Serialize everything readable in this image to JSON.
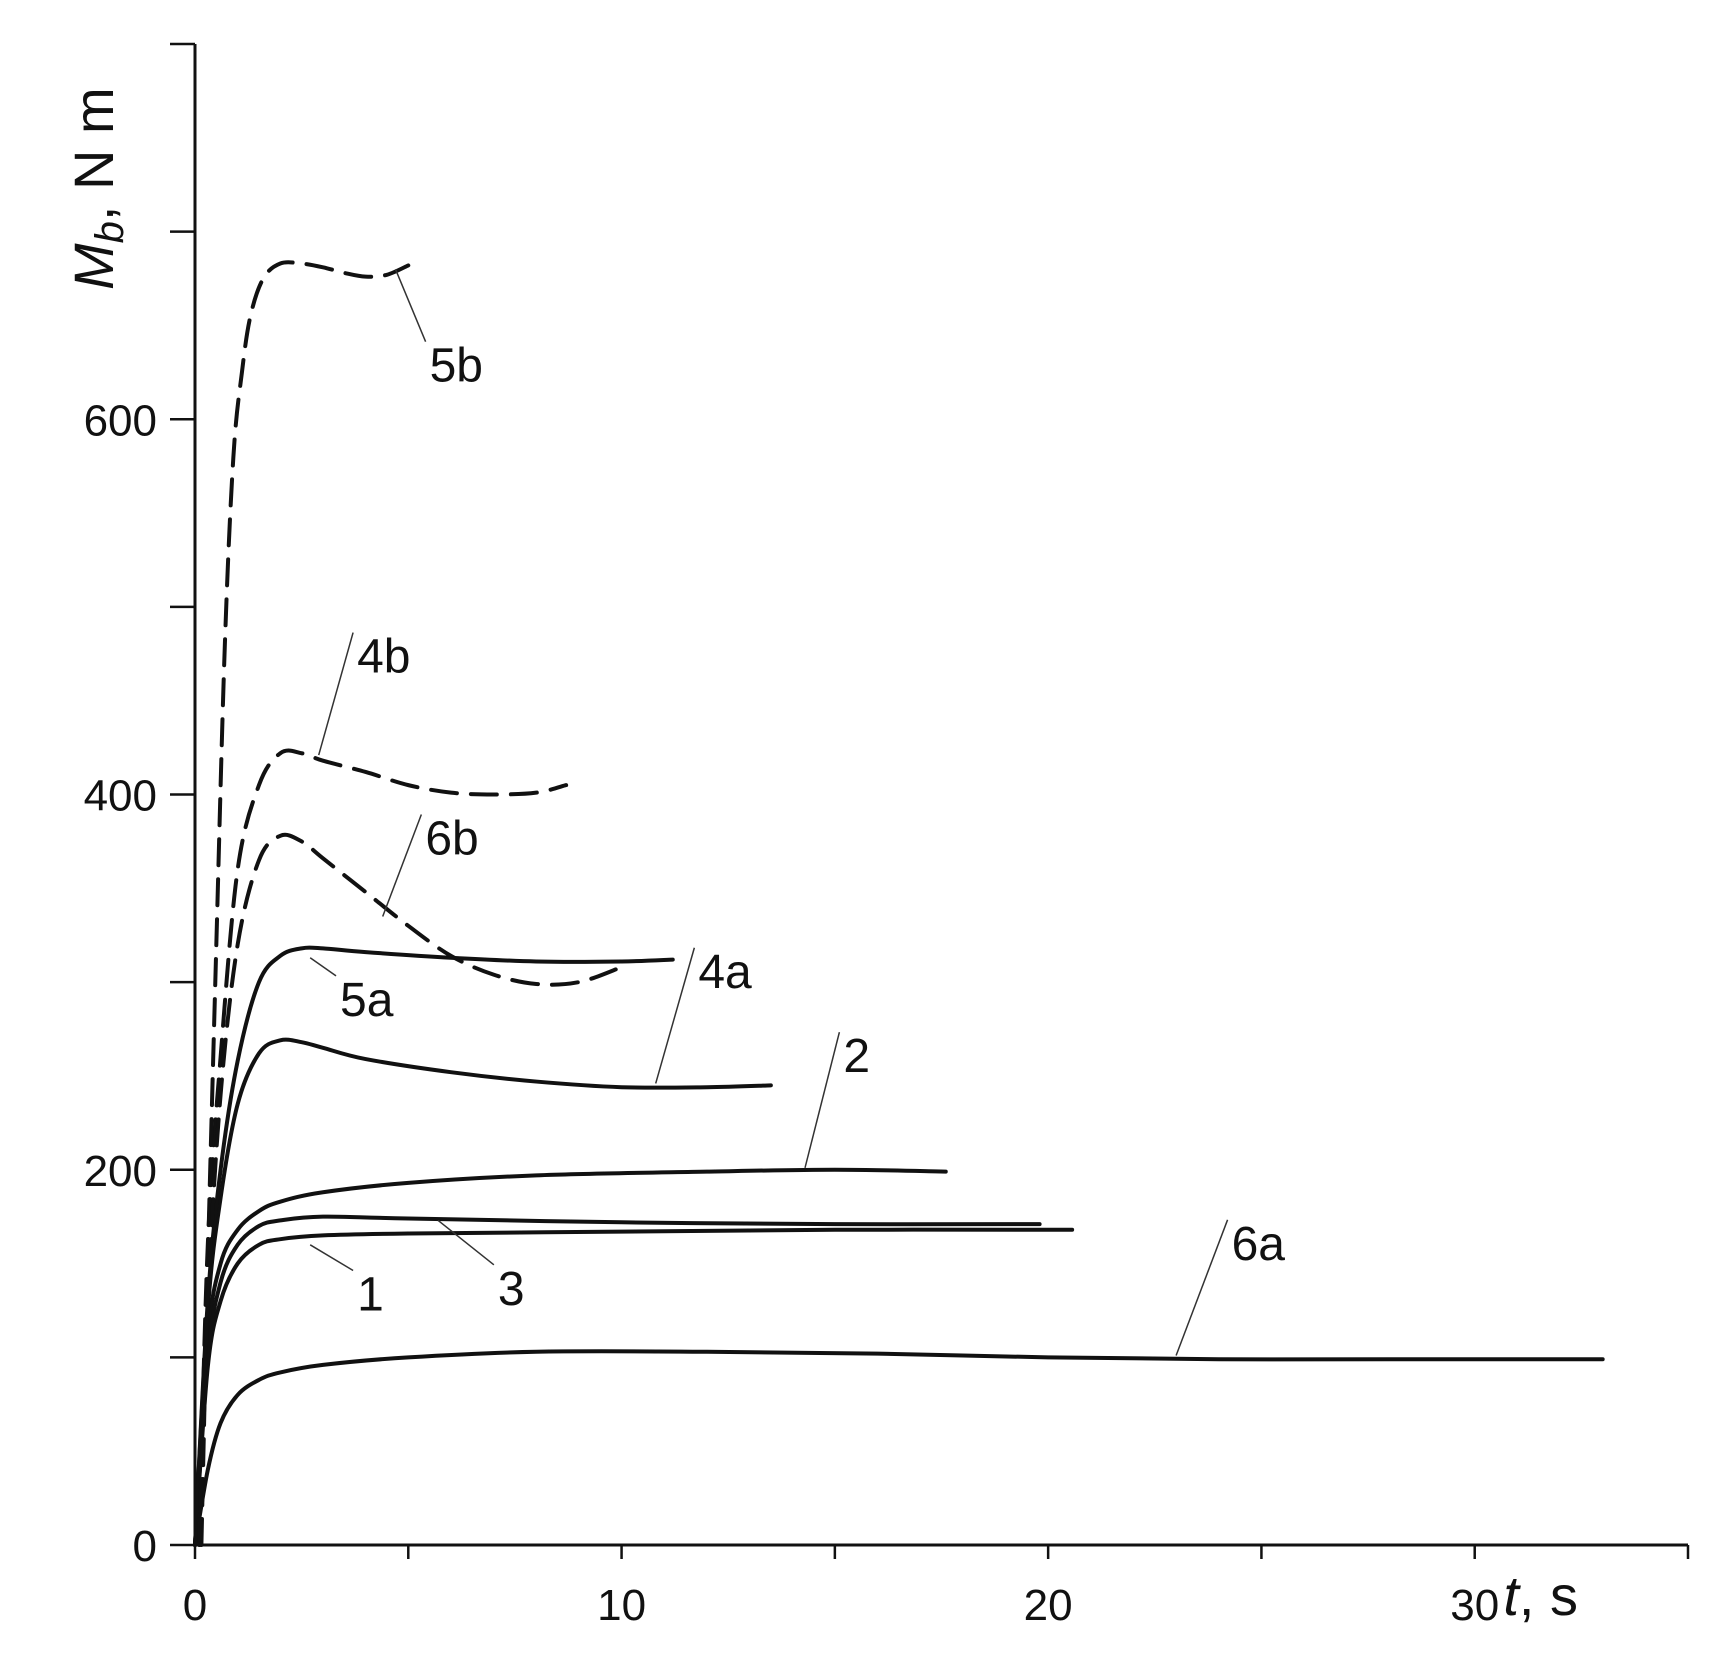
{
  "chart_data": {
    "type": "line",
    "xlabel": {
      "var": "t",
      "unit": ", s"
    },
    "ylabel": {
      "var": "M",
      "sub": "b",
      "unit": ", N m"
    },
    "xlim": [
      0,
      35
    ],
    "ylim": [
      0,
      800
    ],
    "x_ticks": [
      0,
      10,
      20,
      30
    ],
    "x_minor_ticks": [
      5,
      15,
      25,
      35
    ],
    "y_ticks": [
      0,
      200,
      400,
      600
    ],
    "y_minor_ticks": [
      100,
      300,
      500,
      700,
      800
    ],
    "grid": false,
    "series": [
      {
        "name": "1",
        "style": "solid",
        "x": [
          0,
          0.3,
          0.6,
          1.0,
          1.5,
          2.0,
          3,
          5,
          10,
          15,
          20,
          20.5
        ],
        "y": [
          0,
          95,
          130,
          150,
          160,
          163,
          165,
          166,
          167,
          168,
          168,
          168
        ],
        "label_pos": [
          3.8,
          125
        ],
        "leader_to": [
          2.7,
          160
        ]
      },
      {
        "name": "2",
        "style": "solid",
        "x": [
          0,
          0.3,
          0.6,
          1.0,
          1.5,
          2.0,
          3,
          5,
          8,
          12,
          15,
          17.6
        ],
        "y": [
          0,
          110,
          150,
          168,
          178,
          183,
          188,
          193,
          197,
          199,
          200,
          199
        ],
        "label_pos": [
          15.2,
          252
        ],
        "leader_to": [
          14.3,
          201
        ]
      },
      {
        "name": "3",
        "style": "solid",
        "x": [
          0,
          0.3,
          0.6,
          1.0,
          1.5,
          2.0,
          3,
          5,
          10,
          15,
          19.8
        ],
        "y": [
          0,
          100,
          140,
          160,
          170,
          173,
          175,
          174,
          172,
          171,
          171
        ],
        "label_pos": [
          7.1,
          128
        ],
        "leader_to": [
          5.7,
          173
        ]
      },
      {
        "name": "4a",
        "style": "solid",
        "x": [
          0,
          0.3,
          0.6,
          1.0,
          1.5,
          2.0,
          2.5,
          3,
          4,
          6,
          8,
          10,
          12,
          13.5
        ],
        "y": [
          0,
          125,
          185,
          235,
          262,
          269,
          268,
          265,
          259,
          252,
          247,
          244,
          244,
          245
        ],
        "label_pos": [
          11.8,
          297
        ],
        "leader_to": [
          10.8,
          246
        ]
      },
      {
        "name": "5a",
        "style": "solid",
        "x": [
          0,
          0.3,
          0.6,
          1.0,
          1.5,
          2.0,
          2.5,
          3,
          4,
          6,
          8,
          10,
          11.2
        ],
        "y": [
          0,
          130,
          200,
          258,
          300,
          314,
          318,
          318,
          316,
          313,
          311,
          311,
          312
        ],
        "label_pos": [
          3.4,
          282
        ],
        "leader_to": [
          2.7,
          313
        ]
      },
      {
        "name": "6a",
        "style": "solid",
        "x": [
          0,
          0.3,
          0.6,
          1.0,
          1.5,
          2.0,
          3,
          5,
          8,
          12,
          16,
          20,
          24,
          28,
          33
        ],
        "y": [
          0,
          40,
          65,
          80,
          88,
          92,
          96,
          100,
          103,
          103,
          102,
          100,
          99,
          99,
          99
        ],
        "label_pos": [
          24.3,
          152
        ],
        "leader_to": [
          23.0,
          101
        ]
      },
      {
        "name": "4b",
        "style": "dashed",
        "x": [
          0.1,
          0.3,
          0.6,
          1.0,
          1.5,
          2.0,
          2.5,
          3,
          4,
          5,
          6,
          7,
          8,
          8.7
        ],
        "y": [
          0,
          160,
          260,
          360,
          405,
          422,
          422,
          418,
          412,
          405,
          401,
          400,
          401,
          405
        ],
        "label_pos": [
          3.8,
          465
        ],
        "leader_to": [
          2.9,
          421
        ]
      },
      {
        "name": "5b",
        "style": "dashed",
        "x": [
          0.15,
          0.3,
          0.5,
          0.7,
          0.9,
          1.1,
          1.3,
          1.6,
          2.0,
          2.5,
          3,
          3.5,
          4,
          4.5,
          5
        ],
        "y": [
          0,
          150,
          320,
          480,
          580,
          625,
          655,
          675,
          683,
          683,
          681,
          678,
          676,
          677,
          682
        ],
        "label_pos": [
          5.5,
          620
        ],
        "leader_to": [
          4.7,
          680
        ]
      },
      {
        "name": "6b",
        "style": "dashed",
        "x": [
          0.1,
          0.3,
          0.6,
          1.0,
          1.5,
          2.0,
          2.5,
          3,
          4,
          5,
          6,
          7,
          8,
          9,
          10
        ],
        "y": [
          0,
          130,
          240,
          320,
          365,
          378,
          375,
          366,
          348,
          330,
          314,
          304,
          299,
          300,
          308
        ],
        "label_pos": [
          5.4,
          368
        ],
        "leader_to": [
          4.4,
          335
        ]
      }
    ]
  }
}
